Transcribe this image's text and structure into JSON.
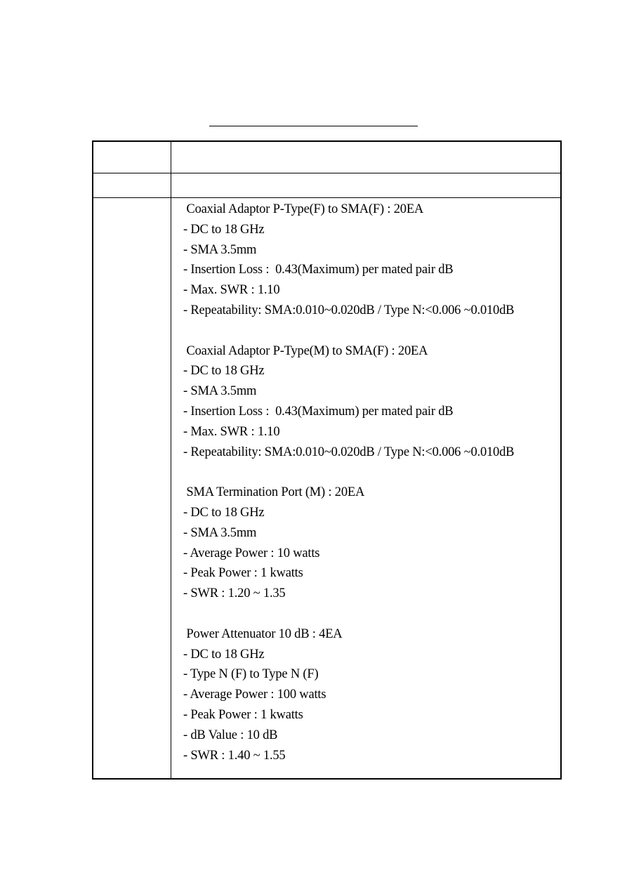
{
  "sections": [
    {
      "heading": " Coaxial Adaptor P-Type(F) to SMA(F) : 20EA",
      "items": [
        "- DC to 18 GHz",
        "- SMA 3.5mm",
        "- Insertion Loss :  0.43(Maximum) per mated pair dB",
        "- Max. SWR : 1.10",
        "- Repeatability: SMA:0.010~0.020dB / Type N:<0.006 ~0.010dB"
      ]
    },
    {
      "heading": " Coaxial Adaptor P-Type(M) to SMA(F) : 20EA",
      "items": [
        "- DC to 18 GHz",
        "- SMA 3.5mm",
        "- Insertion Loss :  0.43(Maximum) per mated pair dB",
        "- Max. SWR : 1.10",
        "- Repeatability: SMA:0.010~0.020dB / Type N:<0.006 ~0.010dB"
      ]
    },
    {
      "heading": " SMA Termination Port (M) : 20EA",
      "items": [
        "- DC to 18 GHz",
        "- SMA 3.5mm",
        "- Average Power : 10 watts",
        "- Peak Power : 1 kwatts",
        "- SWR : 1.20 ~ 1.35"
      ]
    },
    {
      "heading": " Power Attenuator 10 dB : 4EA",
      "items": [
        "- DC to 18 GHz",
        "- Type N (F) to Type N (F)",
        "- Average Power : 100 watts",
        "- Peak Power : 1 kwatts",
        "- dB Value : 10 dB",
        "- SWR : 1.40 ~ 1.55"
      ]
    }
  ]
}
